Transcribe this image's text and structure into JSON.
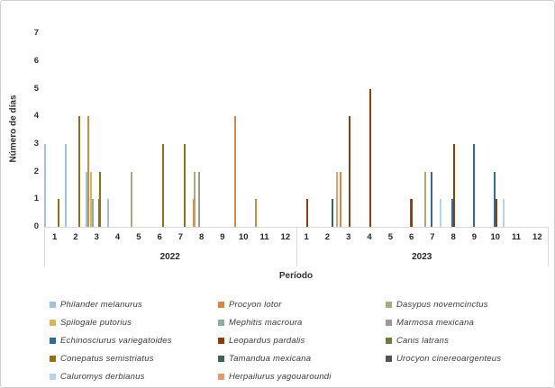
{
  "chart_data": {
    "type": "bar",
    "title": "",
    "ylabel": "Número de días",
    "xlabel": "Período",
    "ylim": [
      0,
      7
    ],
    "yticks": [
      "0",
      "1",
      "2",
      "3",
      "4",
      "5",
      "6",
      "7"
    ],
    "grid": false,
    "legend_position": "bottom",
    "x_groups": [
      {
        "year": "2022",
        "months": [
          "1",
          "2",
          "3",
          "4",
          "5",
          "6",
          "7",
          "8",
          "9",
          "10",
          "11",
          "12"
        ]
      },
      {
        "year": "2023",
        "months": [
          "1",
          "2",
          "3",
          "4",
          "5",
          "6",
          "7",
          "8",
          "9",
          "10",
          "11",
          "12"
        ]
      }
    ],
    "series": [
      {
        "name": "Philander melanurus",
        "color": "#a3c0da",
        "values_2022": [
          3,
          3,
          2,
          1,
          0,
          0,
          0,
          0,
          0,
          0,
          0,
          0
        ],
        "values_2023": [
          0,
          0,
          0,
          0,
          0,
          0,
          0,
          0,
          0,
          0,
          0,
          0
        ]
      },
      {
        "name": "Procyon lotor",
        "color": "#d28849",
        "values_2022": [
          0,
          0,
          4,
          0,
          0,
          0,
          0,
          1,
          0,
          4,
          1,
          0
        ],
        "values_2023": [
          0,
          0,
          2,
          0,
          0,
          0,
          0,
          0,
          0,
          0,
          0,
          0
        ]
      },
      {
        "name": "Dasypus novemcinctus",
        "color": "#a9ab7f",
        "values_2022": [
          0,
          0,
          0,
          0,
          2,
          0,
          0,
          2,
          0,
          0,
          0,
          0
        ],
        "values_2023": [
          0,
          0,
          0,
          0,
          0,
          0,
          2,
          0,
          0,
          0,
          0,
          0
        ]
      },
      {
        "name": "Spilogale putorius",
        "color": "#d3b760",
        "values_2022": [
          0,
          0,
          2,
          0,
          0,
          0,
          0,
          0,
          0,
          0,
          0,
          0
        ],
        "values_2023": [
          0,
          0,
          0,
          0,
          0,
          0,
          0,
          0,
          0,
          0,
          0,
          0
        ]
      },
      {
        "name": "Mephitis macroura",
        "color": "#8fac9b",
        "values_2022": [
          0,
          0,
          1,
          0,
          0,
          0,
          0,
          0,
          0,
          0,
          0,
          0
        ],
        "values_2023": [
          0,
          0,
          0,
          0,
          0,
          0,
          0,
          0,
          0,
          0,
          0,
          0
        ]
      },
      {
        "name": "Marmosa mexicana",
        "color": "#9f9799",
        "values_2022": [
          0,
          0,
          0,
          0,
          0,
          0,
          0,
          2,
          0,
          0,
          0,
          0
        ],
        "values_2023": [
          0,
          0,
          0,
          0,
          0,
          0,
          0,
          0,
          0,
          0,
          0,
          0
        ]
      },
      {
        "name": "Echinosciurus variegatoides",
        "color": "#356b90",
        "values_2022": [
          0,
          0,
          0,
          0,
          0,
          0,
          0,
          0,
          0,
          0,
          0,
          0
        ],
        "values_2023": [
          0,
          0,
          0,
          0,
          0,
          1,
          2,
          1,
          3,
          2,
          0,
          0
        ]
      },
      {
        "name": "Leopardus pardalis",
        "color": "#8a3e0f",
        "values_2022": [
          0,
          0,
          0,
          0,
          0,
          0,
          0,
          0,
          0,
          0,
          0,
          0
        ],
        "values_2023": [
          1,
          0,
          4,
          5,
          0,
          1,
          0,
          3,
          0,
          1,
          0,
          0
        ]
      },
      {
        "name": "Canis latrans",
        "color": "#6a7b44",
        "values_2022": [
          0,
          0,
          1,
          0,
          0,
          0,
          0,
          0,
          0,
          0,
          0,
          0
        ],
        "values_2023": [
          0,
          0,
          0,
          0,
          0,
          0,
          0,
          0,
          0,
          0,
          0,
          0
        ]
      },
      {
        "name": "Conepatus semistriatus",
        "color": "#907117",
        "values_2022": [
          1,
          4,
          2,
          0,
          0,
          3,
          3,
          0,
          0,
          0,
          0,
          0
        ],
        "values_2023": [
          0,
          0,
          0,
          0,
          0,
          0,
          0,
          0,
          0,
          0,
          0,
          0
        ]
      },
      {
        "name": "Tamandua mexicana",
        "color": "#40615a",
        "values_2022": [
          0,
          0,
          0,
          0,
          0,
          0,
          0,
          0,
          0,
          0,
          0,
          0
        ],
        "values_2023": [
          0,
          1,
          0,
          0,
          0,
          0,
          0,
          0,
          0,
          0,
          0,
          0
        ]
      },
      {
        "name": "Urocyon cinereoargenteus",
        "color": "#575153",
        "values_2022": [
          0,
          0,
          0,
          0,
          0,
          0,
          0,
          0,
          0,
          0,
          0,
          0
        ],
        "values_2023": [
          0,
          0,
          0,
          0,
          0,
          0,
          0,
          0,
          0,
          0,
          0,
          0
        ]
      },
      {
        "name": "Caluromys derbianus",
        "color": "#b9d2e5",
        "values_2022": [
          0,
          0,
          0,
          0,
          0,
          0,
          0,
          0,
          0,
          0,
          0,
          0
        ],
        "values_2023": [
          0,
          0,
          0,
          0,
          0,
          0,
          1,
          0,
          0,
          1,
          0,
          0
        ]
      },
      {
        "name": "Herpailurus yagouaroundi",
        "color": "#dd9d75",
        "values_2022": [
          0,
          0,
          0,
          0,
          0,
          0,
          0,
          0,
          0,
          0,
          0,
          0
        ],
        "values_2023": [
          0,
          2,
          0,
          0,
          0,
          0,
          0,
          0,
          0,
          0,
          0,
          0
        ]
      }
    ]
  }
}
